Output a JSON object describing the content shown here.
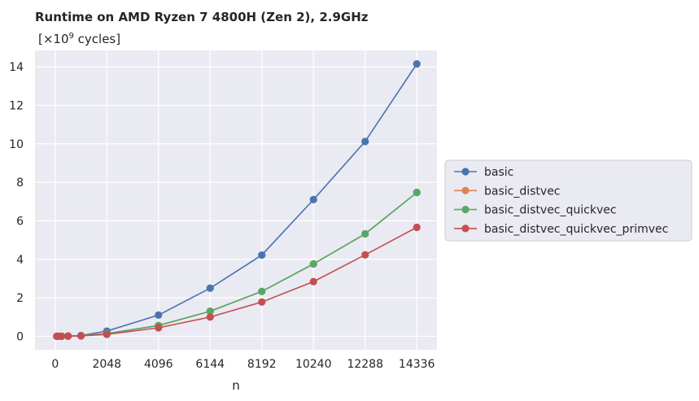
{
  "chart_data": {
    "type": "line",
    "title": "Runtime on AMD Ryzen 7 4800H (Zen 2),  2.9GHz",
    "subtitle_prefix": "[×10",
    "subtitle_exponent": "9",
    "subtitle_suffix": " cycles]",
    "xlabel": "n",
    "ylabel": "",
    "xlim": [
      -800,
      15136
    ],
    "ylim": [
      -0.7,
      14.85
    ],
    "xticks": [
      0,
      2048,
      4096,
      6144,
      8192,
      10240,
      12288,
      14336
    ],
    "xtick_labels": [
      "0",
      "2048",
      "4096",
      "6144",
      "8192",
      "10240",
      "12288",
      "14336"
    ],
    "yticks": [
      0,
      2,
      4,
      6,
      8,
      10,
      12,
      14
    ],
    "ytick_labels": [
      "0",
      "2",
      "4",
      "6",
      "8",
      "10",
      "12",
      "14"
    ],
    "grid": true,
    "legend_position": "right-outside",
    "x": [
      64,
      128,
      256,
      512,
      1024,
      2048,
      4096,
      6144,
      8192,
      10240,
      12288,
      14336
    ],
    "series": [
      {
        "name": "basic",
        "color": "#4c72b0",
        "values": [
          0.0,
          0.0,
          0.0,
          0.01,
          0.04,
          0.27,
          1.1,
          2.5,
          4.22,
          7.1,
          10.12,
          14.15
        ]
      },
      {
        "name": "basic_distvec",
        "color": "#dd8452",
        "values": [
          0.0,
          0.0,
          0.0,
          0.01,
          0.03,
          0.14,
          0.56,
          1.3,
          2.33,
          3.76,
          5.32,
          7.47
        ]
      },
      {
        "name": "basic_distvec_quickvec",
        "color": "#55a868",
        "values": [
          0.0,
          0.0,
          0.0,
          0.01,
          0.03,
          0.14,
          0.56,
          1.3,
          2.33,
          3.76,
          5.32,
          7.47
        ]
      },
      {
        "name": "basic_distvec_quickvec_primvec",
        "color": "#c44e52",
        "values": [
          0.0,
          0.0,
          0.0,
          0.01,
          0.02,
          0.1,
          0.44,
          1.0,
          1.78,
          2.84,
          4.23,
          5.66
        ]
      }
    ]
  }
}
